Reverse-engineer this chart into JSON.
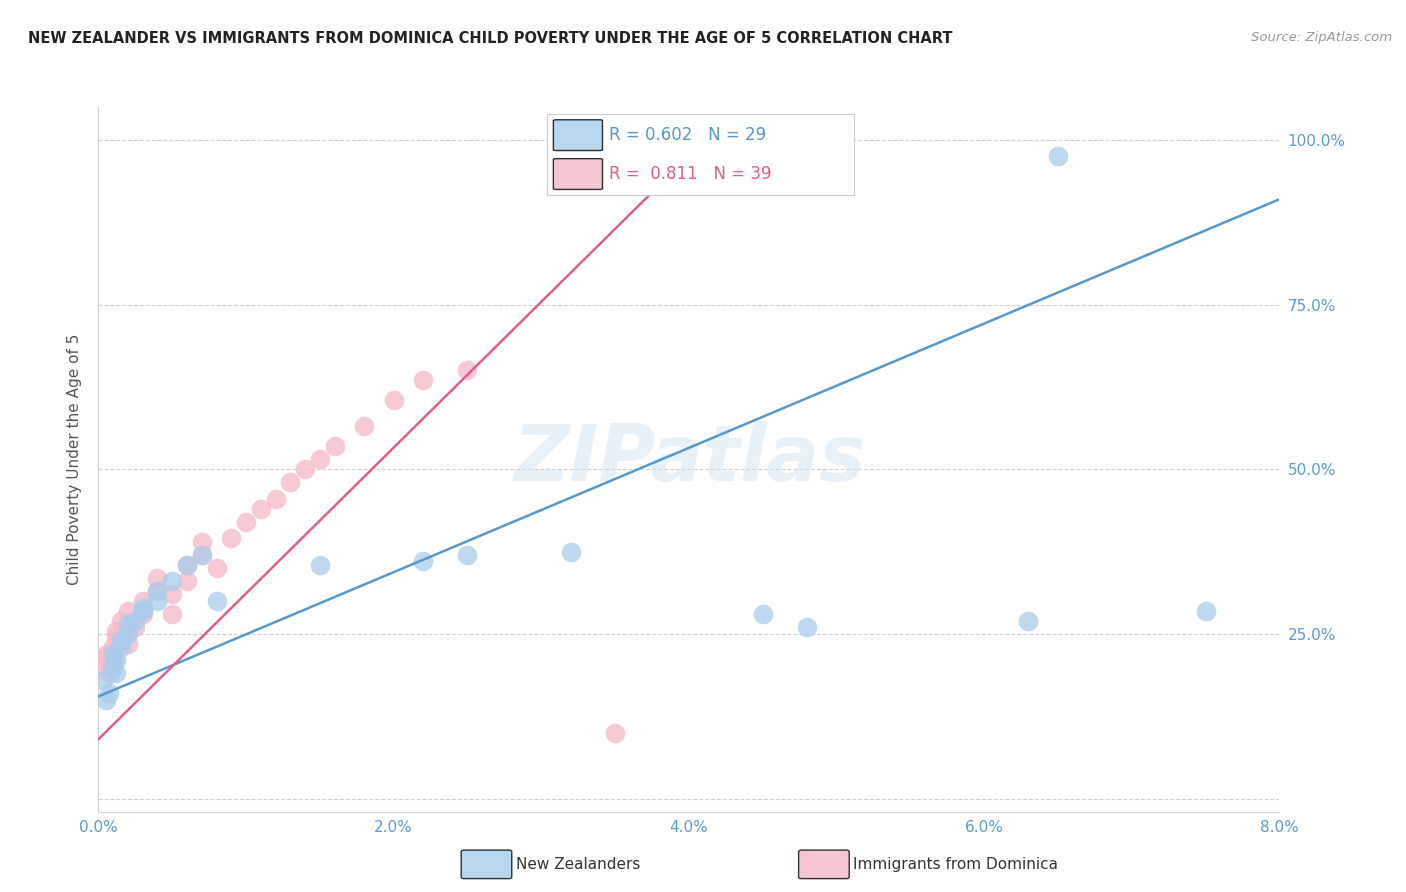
{
  "title": "NEW ZEALANDER VS IMMIGRANTS FROM DOMINICA CHILD POVERTY UNDER THE AGE OF 5 CORRELATION CHART",
  "source": "Source: ZipAtlas.com",
  "ylabel": "Child Poverty Under the Age of 5",
  "yticks": [
    0.0,
    0.25,
    0.5,
    0.75,
    1.0
  ],
  "ytick_labels": [
    "",
    "25.0%",
    "50.0%",
    "75.0%",
    "100.0%"
  ],
  "xticks": [
    0.0,
    0.01,
    0.02,
    0.03,
    0.04,
    0.05,
    0.06,
    0.07,
    0.08
  ],
  "xtick_labels": [
    "0.0%",
    "",
    "2.0%",
    "",
    "4.0%",
    "",
    "6.0%",
    "",
    "8.0%"
  ],
  "xlim": [
    0.0,
    0.08
  ],
  "ylim": [
    -0.02,
    1.05
  ],
  "nz_R": 0.602,
  "nz_N": 29,
  "dom_R": 0.811,
  "dom_N": 39,
  "nz_color": "#a8ccec",
  "dom_color": "#f5b8c8",
  "nz_line_color": "#5599cc",
  "dom_line_color": "#e06080",
  "watermark": "ZIPatlas",
  "legend_label_nz": "New Zealanders",
  "legend_label_dom": "Immigrants from Dominica",
  "nz_scatter_x": [
    0.0003,
    0.0005,
    0.0007,
    0.001,
    0.001,
    0.0012,
    0.0012,
    0.0015,
    0.0015,
    0.002,
    0.002,
    0.0025,
    0.003,
    0.003,
    0.004,
    0.004,
    0.005,
    0.006,
    0.007,
    0.008,
    0.015,
    0.022,
    0.025,
    0.032,
    0.045,
    0.048,
    0.063,
    0.065,
    0.075
  ],
  "nz_scatter_y": [
    0.18,
    0.15,
    0.16,
    0.2,
    0.22,
    0.19,
    0.21,
    0.23,
    0.24,
    0.25,
    0.265,
    0.27,
    0.285,
    0.29,
    0.3,
    0.315,
    0.33,
    0.355,
    0.37,
    0.3,
    0.355,
    0.36,
    0.37,
    0.375,
    0.28,
    0.26,
    0.27,
    0.975,
    0.285
  ],
  "dom_scatter_x": [
    0.0003,
    0.0005,
    0.0006,
    0.0007,
    0.0008,
    0.001,
    0.001,
    0.0012,
    0.0012,
    0.0015,
    0.0015,
    0.002,
    0.002,
    0.002,
    0.0025,
    0.003,
    0.003,
    0.004,
    0.004,
    0.005,
    0.005,
    0.006,
    0.006,
    0.007,
    0.007,
    0.008,
    0.009,
    0.01,
    0.011,
    0.012,
    0.013,
    0.014,
    0.015,
    0.016,
    0.018,
    0.02,
    0.022,
    0.025,
    0.035
  ],
  "dom_scatter_y": [
    0.2,
    0.215,
    0.22,
    0.205,
    0.19,
    0.21,
    0.23,
    0.245,
    0.255,
    0.24,
    0.27,
    0.235,
    0.255,
    0.285,
    0.26,
    0.28,
    0.3,
    0.315,
    0.335,
    0.28,
    0.31,
    0.33,
    0.355,
    0.37,
    0.39,
    0.35,
    0.395,
    0.42,
    0.44,
    0.455,
    0.48,
    0.5,
    0.515,
    0.535,
    0.565,
    0.605,
    0.635,
    0.65,
    0.1
  ],
  "nz_line_x": [
    0.0,
    0.08
  ],
  "nz_line_y": [
    0.155,
    0.91
  ],
  "dom_line_x": [
    0.0,
    0.042
  ],
  "dom_line_y": [
    0.09,
    1.02
  ]
}
